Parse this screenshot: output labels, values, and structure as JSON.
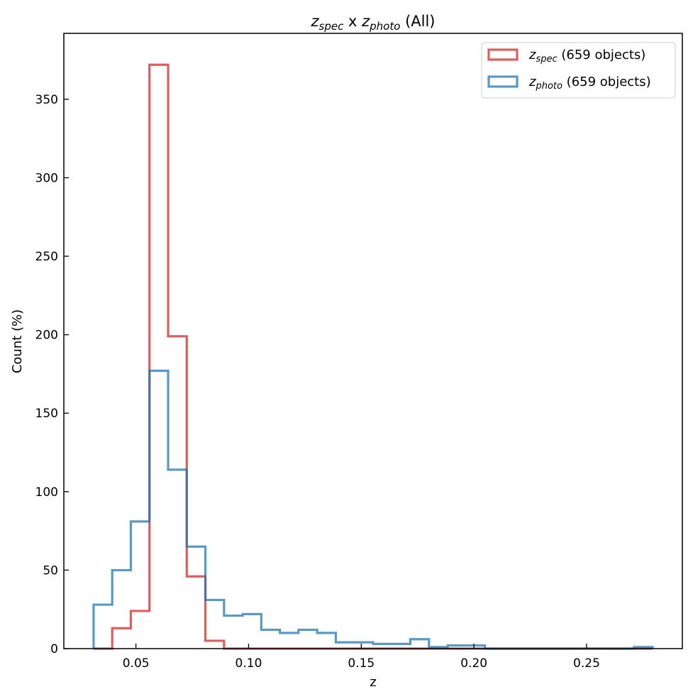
{
  "chart_data": {
    "type": "histogram",
    "title": {
      "main_a": "z",
      "sub_a": "spec",
      "mid": " x ",
      "main_b": "z",
      "sub_b": "photo",
      "tail": " (All)"
    },
    "xlabel": "z",
    "ylabel": "Count (%)",
    "xlim": [
      0.018,
      0.2925
    ],
    "ylim": [
      0,
      392
    ],
    "xticks": [
      0.05,
      0.1,
      0.15,
      0.2,
      0.25
    ],
    "xtick_labels": [
      "0.05",
      "0.10",
      "0.15",
      "0.20",
      "0.25"
    ],
    "yticks": [
      0,
      50,
      100,
      150,
      200,
      250,
      300,
      350
    ],
    "ytick_labels": [
      "0",
      "50",
      "100",
      "150",
      "200",
      "250",
      "300",
      "350"
    ],
    "bin_start": 0.0312,
    "bin_width": 0.00827,
    "legend_position": "top-right",
    "series": [
      {
        "name": "z",
        "sub": "spec",
        "label_suffix": " (659 objects)",
        "color": "#d62728",
        "values": [
          0,
          13,
          24,
          372,
          199,
          46,
          5,
          0,
          0,
          0,
          0,
          0,
          0,
          0,
          0,
          0,
          0,
          0,
          0,
          0,
          0,
          0,
          0,
          0,
          0,
          0,
          0,
          0,
          0,
          0
        ]
      },
      {
        "name": "z",
        "sub": "photo",
        "label_suffix": " (659 objects)",
        "color": "#1f77b4",
        "values": [
          28,
          50,
          81,
          177,
          114,
          65,
          31,
          21,
          22,
          12,
          10,
          12,
          10,
          4,
          4,
          3,
          3,
          6,
          1,
          2,
          2,
          0,
          0,
          0,
          0,
          0,
          0,
          0,
          0,
          1
        ]
      }
    ]
  }
}
